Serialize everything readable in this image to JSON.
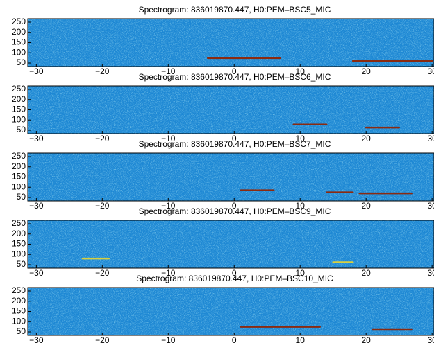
{
  "chart_data": [
    {
      "type": "spectrogram",
      "title": "Spectrogram: 836019870.447, H0:PEM–BSC5_MIC",
      "xlim": [
        -31.3,
        30.3
      ],
      "ylim": [
        33,
        267
      ],
      "xticks": [
        {
          "value": -30,
          "label": "−30"
        },
        {
          "value": -20,
          "label": "−20"
        },
        {
          "value": -10,
          "label": "−10"
        },
        0,
        10,
        20,
        30
      ],
      "yticks": [
        50,
        100,
        150,
        200,
        250
      ],
      "track_color": "#8b2a10",
      "tracks": [
        {
          "x": [
            -4,
            7
          ],
          "y": [
            74,
            74
          ]
        },
        {
          "x": [
            18,
            30
          ],
          "y": [
            60,
            60
          ]
        }
      ]
    },
    {
      "type": "spectrogram",
      "title": "Spectrogram: 836019870.447, H0:PEM–BSC6_MIC",
      "xlim": [
        -31.3,
        30.3
      ],
      "ylim": [
        33,
        267
      ],
      "xticks": [
        {
          "value": -30,
          "label": "−30"
        },
        {
          "value": -20,
          "label": "−20"
        },
        {
          "value": -10,
          "label": "−10"
        },
        0,
        10,
        20,
        30
      ],
      "yticks": [
        50,
        100,
        150,
        200,
        250
      ],
      "track_color": "#8b2a10",
      "tracks": [
        {
          "x": [
            9,
            14
          ],
          "y": [
            78,
            78
          ]
        },
        {
          "x": [
            20,
            25
          ],
          "y": [
            63,
            63
          ]
        }
      ]
    },
    {
      "type": "spectrogram",
      "title": "Spectrogram: 836019870.447, H0:PEM–BSC7_MIC",
      "xlim": [
        -31.3,
        30.3
      ],
      "ylim": [
        33,
        267
      ],
      "xticks": [
        {
          "value": -30,
          "label": "−30"
        },
        {
          "value": -20,
          "label": "−20"
        },
        {
          "value": -10,
          "label": "−10"
        },
        0,
        10,
        20,
        30
      ],
      "yticks": [
        50,
        100,
        150,
        200,
        250
      ],
      "track_color": "#8b2a10",
      "tracks": [
        {
          "x": [
            1,
            6
          ],
          "y": [
            85,
            85
          ]
        },
        {
          "x": [
            14,
            18
          ],
          "y": [
            75,
            75
          ]
        },
        {
          "x": [
            19,
            27
          ],
          "y": [
            70,
            70
          ]
        }
      ]
    },
    {
      "type": "spectrogram",
      "title": "Spectrogram: 836019870.447, H0:PEM–BSC9_MIC",
      "xlim": [
        -31.3,
        30.3
      ],
      "ylim": [
        33,
        267
      ],
      "xticks": [
        {
          "value": -30,
          "label": "−30"
        },
        {
          "value": -20,
          "label": "−20"
        },
        {
          "value": -10,
          "label": "−10"
        },
        0,
        10,
        20,
        30
      ],
      "yticks": [
        50,
        100,
        150,
        200,
        250
      ],
      "track_color": "#d8d040",
      "tracks": [
        {
          "x": [
            -23,
            -19
          ],
          "y": [
            80,
            80
          ]
        },
        {
          "x": [
            15,
            18
          ],
          "y": [
            62,
            62
          ]
        }
      ]
    },
    {
      "type": "spectrogram",
      "title": "Spectrogram: 836019870.447, H0:PEM–BSC10_MIC",
      "xlim": [
        -31.3,
        30.3
      ],
      "ylim": [
        33,
        267
      ],
      "xticks": [
        {
          "value": -30,
          "label": "−30"
        },
        {
          "value": -20,
          "label": "−20"
        },
        {
          "value": -10,
          "label": "−10"
        },
        0,
        10,
        20,
        30
      ],
      "yticks": [
        50,
        100,
        150,
        200,
        250
      ],
      "track_color": "#8b2a10",
      "tracks": [
        {
          "x": [
            1,
            13
          ],
          "y": [
            75,
            75
          ]
        },
        {
          "x": [
            21,
            27
          ],
          "y": [
            60,
            60
          ]
        }
      ]
    }
  ]
}
